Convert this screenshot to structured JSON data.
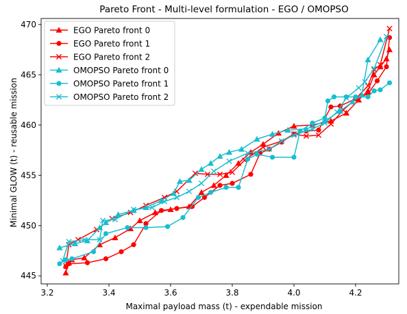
{
  "chart_data": {
    "type": "line",
    "title": "Pareto Front - Multi-level formulation - EGO / OMOPSO",
    "xlabel": "Maximal payload mass (t) - expendable mission",
    "ylabel": "Minimal GLOW (t) - reusable mission",
    "xlim": [
      3.18,
      4.34
    ],
    "ylim": [
      444.2,
      470.6
    ],
    "x_ticks": [
      3.2,
      3.4,
      3.6,
      3.8,
      4.0,
      4.2
    ],
    "x_tick_labels": [
      "3.2",
      "3.4",
      "3.6",
      "3.8",
      "4.0",
      "4.2"
    ],
    "y_ticks": [
      445,
      450,
      455,
      460,
      465,
      470
    ],
    "y_tick_labels": [
      "445",
      "450",
      "455",
      "460",
      "465",
      "470"
    ],
    "grid": false,
    "legend_position": "top-left",
    "series": [
      {
        "name": "EGO Pareto front 0",
        "color": "#ff0000",
        "marker": "triangle",
        "points": [
          [
            3.26,
            445.3
          ],
          [
            3.27,
            446.3
          ],
          [
            3.28,
            446.6
          ],
          [
            3.32,
            446.8
          ],
          [
            3.37,
            448.1
          ],
          [
            3.42,
            448.8
          ],
          [
            3.47,
            449.7
          ],
          [
            3.5,
            450.5
          ],
          [
            3.55,
            451.3
          ],
          [
            3.6,
            451.6
          ],
          [
            3.66,
            451.9
          ],
          [
            3.7,
            453.3
          ],
          [
            3.74,
            454.0
          ],
          [
            3.78,
            455.0
          ],
          [
            3.82,
            456.2
          ],
          [
            3.86,
            457.3
          ],
          [
            3.9,
            458.1
          ],
          [
            3.95,
            459.2
          ],
          [
            4.0,
            459.9
          ],
          [
            4.06,
            460.0
          ],
          [
            4.12,
            460.4
          ],
          [
            4.17,
            461.2
          ],
          [
            4.21,
            462.5
          ],
          [
            4.24,
            463.4
          ],
          [
            4.26,
            465.0
          ],
          [
            4.28,
            465.8
          ],
          [
            4.3,
            466.6
          ],
          [
            4.31,
            467.5
          ]
        ]
      },
      {
        "name": "EGO Pareto front 1",
        "color": "#ff0000",
        "marker": "circle",
        "points": [
          [
            3.26,
            445.9
          ],
          [
            3.27,
            446.2
          ],
          [
            3.33,
            446.3
          ],
          [
            3.39,
            446.7
          ],
          [
            3.44,
            447.4
          ],
          [
            3.48,
            448.1
          ],
          [
            3.52,
            450.2
          ],
          [
            3.57,
            451.5
          ],
          [
            3.62,
            451.7
          ],
          [
            3.67,
            451.9
          ],
          [
            3.71,
            452.8
          ],
          [
            3.76,
            454.0
          ],
          [
            3.8,
            454.2
          ],
          [
            3.86,
            455.1
          ],
          [
            3.89,
            457.2
          ],
          [
            3.92,
            457.6
          ],
          [
            3.96,
            458.3
          ],
          [
            4.0,
            459.1
          ],
          [
            4.04,
            459.4
          ],
          [
            4.08,
            459.5
          ],
          [
            4.12,
            461.8
          ],
          [
            4.15,
            461.9
          ],
          [
            4.2,
            462.6
          ],
          [
            4.24,
            463.1
          ],
          [
            4.27,
            464.4
          ],
          [
            4.3,
            465.8
          ],
          [
            4.31,
            468.7
          ]
        ]
      },
      {
        "name": "EGO Pareto front 2",
        "color": "#ff0000",
        "marker": "x",
        "points": [
          [
            3.26,
            446.0
          ],
          [
            3.27,
            448.1
          ],
          [
            3.3,
            448.6
          ],
          [
            3.36,
            449.6
          ],
          [
            3.41,
            450.7
          ],
          [
            3.47,
            451.3
          ],
          [
            3.52,
            452.0
          ],
          [
            3.58,
            452.8
          ],
          [
            3.62,
            453.4
          ],
          [
            3.68,
            455.2
          ],
          [
            3.72,
            455.1
          ],
          [
            3.76,
            455.1
          ],
          [
            3.8,
            455.3
          ],
          [
            3.84,
            456.5
          ],
          [
            3.9,
            457.8
          ],
          [
            3.96,
            458.4
          ],
          [
            4.0,
            459.1
          ],
          [
            4.04,
            458.9
          ],
          [
            4.08,
            459.0
          ],
          [
            4.12,
            460.1
          ],
          [
            4.16,
            461.5
          ],
          [
            4.2,
            462.6
          ],
          [
            4.24,
            463.9
          ],
          [
            4.26,
            465.5
          ],
          [
            4.28,
            466.0
          ],
          [
            4.31,
            469.6
          ]
        ]
      },
      {
        "name": "OMOPSO Pareto front 0",
        "color": "#17becf",
        "marker": "triangle",
        "points": [
          [
            3.24,
            447.8
          ],
          [
            3.29,
            448.2
          ],
          [
            3.33,
            448.5
          ],
          [
            3.37,
            449.8
          ],
          [
            3.39,
            450.3
          ],
          [
            3.43,
            451.1
          ],
          [
            3.48,
            451.5
          ],
          [
            3.52,
            451.8
          ],
          [
            3.57,
            452.5
          ],
          [
            3.61,
            453.2
          ],
          [
            3.63,
            454.4
          ],
          [
            3.66,
            454.5
          ],
          [
            3.7,
            455.6
          ],
          [
            3.73,
            456.2
          ],
          [
            3.76,
            456.9
          ],
          [
            3.79,
            457.3
          ],
          [
            3.83,
            457.6
          ],
          [
            3.88,
            458.6
          ],
          [
            3.93,
            459.1
          ],
          [
            3.98,
            459.5
          ],
          [
            4.04,
            459.6
          ],
          [
            4.1,
            460.4
          ],
          [
            4.15,
            461.4
          ],
          [
            4.19,
            462.3
          ],
          [
            4.22,
            463.0
          ],
          [
            4.24,
            466.5
          ],
          [
            4.28,
            468.5
          ]
        ]
      },
      {
        "name": "OMOPSO Pareto front 1",
        "color": "#17becf",
        "marker": "circle",
        "points": [
          [
            3.24,
            446.2
          ],
          [
            3.26,
            446.6
          ],
          [
            3.28,
            446.7
          ],
          [
            3.35,
            447.4
          ],
          [
            3.39,
            449.2
          ],
          [
            3.46,
            449.8
          ],
          [
            3.52,
            449.8
          ],
          [
            3.59,
            449.9
          ],
          [
            3.64,
            450.8
          ],
          [
            3.69,
            452.8
          ],
          [
            3.73,
            453.3
          ],
          [
            3.78,
            453.8
          ],
          [
            3.82,
            453.8
          ],
          [
            3.85,
            456.6
          ],
          [
            3.88,
            457.1
          ],
          [
            3.93,
            456.8
          ],
          [
            4.0,
            456.8
          ],
          [
            4.02,
            459.4
          ],
          [
            4.06,
            460.2
          ],
          [
            4.1,
            460.7
          ],
          [
            4.11,
            462.4
          ],
          [
            4.13,
            462.8
          ],
          [
            4.17,
            462.8
          ],
          [
            4.2,
            462.8
          ],
          [
            4.24,
            462.8
          ],
          [
            4.26,
            463.4
          ],
          [
            4.28,
            463.5
          ],
          [
            4.31,
            464.2
          ]
        ]
      },
      {
        "name": "OMOPSO Pareto front 2",
        "color": "#17becf",
        "marker": "x",
        "points": [
          [
            3.25,
            446.5
          ],
          [
            3.27,
            448.4
          ],
          [
            3.32,
            448.6
          ],
          [
            3.37,
            448.6
          ],
          [
            3.38,
            450.5
          ],
          [
            3.42,
            450.6
          ],
          [
            3.48,
            451.6
          ],
          [
            3.54,
            451.8
          ],
          [
            3.58,
            452.4
          ],
          [
            3.62,
            452.8
          ],
          [
            3.66,
            453.4
          ],
          [
            3.7,
            454.2
          ],
          [
            3.74,
            455.4
          ],
          [
            3.79,
            456.4
          ],
          [
            3.85,
            457.2
          ],
          [
            3.92,
            457.6
          ],
          [
            3.96,
            458.4
          ],
          [
            4.0,
            459.0
          ],
          [
            4.06,
            459.6
          ],
          [
            4.1,
            460.2
          ],
          [
            4.14,
            461.3
          ],
          [
            4.17,
            462.7
          ],
          [
            4.21,
            463.7
          ],
          [
            4.23,
            464.3
          ],
          [
            4.26,
            465.6
          ],
          [
            4.3,
            468.8
          ]
        ]
      }
    ]
  }
}
